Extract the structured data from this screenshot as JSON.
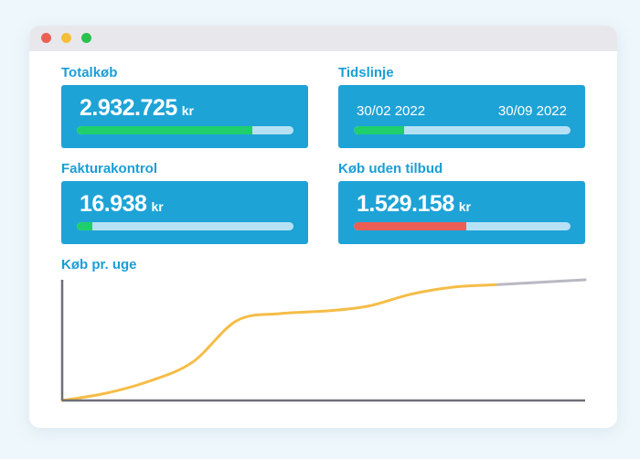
{
  "window": {
    "controls": [
      "close",
      "minimize",
      "maximize"
    ]
  },
  "cards": {
    "totalkob": {
      "label": "Totalkøb",
      "amount": "2.932.725",
      "unit": "kr",
      "progress": 0.81,
      "color": "#1fcf6c"
    },
    "tidslinje": {
      "label": "Tidslinje",
      "start_date": "30/02 2022",
      "end_date": "30/09 2022",
      "progress": 0.23,
      "color": "#1fcf6c"
    },
    "fakturakontrol": {
      "label": "Fakturakontrol",
      "amount": "16.938",
      "unit": "kr",
      "progress": 0.07,
      "color": "#1fcf6c"
    },
    "kob_uden_tilbud": {
      "label": "Køb uden tilbud",
      "amount": "1.529.158",
      "unit": "kr",
      "progress": 0.52,
      "color": "#ec5d55"
    }
  },
  "chart_section": {
    "label": "Køb pr. uge"
  },
  "chart_data": {
    "type": "line",
    "title": "Køb pr. uge",
    "x": [
      0,
      1,
      2,
      3,
      4,
      5,
      6,
      7,
      8,
      9,
      10,
      11,
      12
    ],
    "series": [
      {
        "values": [
          0,
          6,
          16,
          32,
          66,
          72,
          74,
          78,
          88,
          94,
          96,
          null,
          null
        ],
        "color": "#f5bd47"
      },
      {
        "values": [
          null,
          null,
          null,
          null,
          null,
          null,
          null,
          null,
          null,
          null,
          96,
          98,
          100
        ],
        "color": "#b9b9c3"
      }
    ],
    "ylim": [
      0,
      100
    ],
    "grid": false
  }
}
